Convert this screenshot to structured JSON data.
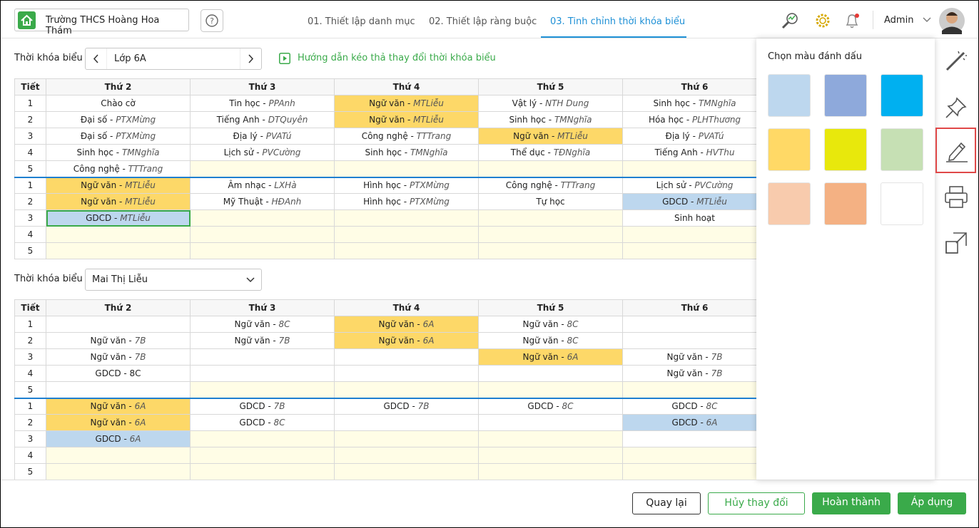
{
  "header": {
    "school": "Trường THCS Hoàng Hoa Thám",
    "tabs": [
      "01. Thiết lập danh mục",
      "02. Thiết lập ràng buộc",
      "03. Tinh chỉnh thời khóa biểu"
    ],
    "active_tab": 2,
    "user": "Admin"
  },
  "section1": {
    "label": "Thời khóa biểu",
    "class": "Lớp 6A",
    "guide": "Hướng dẫn kéo thả thay đổi thời khóa biểu"
  },
  "table1": {
    "headers": [
      "Tiết",
      "Thứ 2",
      "Thứ 3",
      "Thứ 4",
      "Thứ 5",
      "Thứ 6"
    ],
    "sessions": [
      {
        "rows": [
          {
            "period": "1",
            "cells": [
              {
                "s": "Chào cờ"
              },
              {
                "s": "Tin học - ",
                "t": "PPAnh"
              },
              {
                "s": "Ngữ văn - ",
                "t": "MTLiễu",
                "bg": "#fdd868"
              },
              {
                "s": "Vật lý - ",
                "t": "NTH Dung"
              },
              {
                "s": "Sinh học - ",
                "t": "TMNghĩa"
              }
            ]
          },
          {
            "period": "2",
            "cells": [
              {
                "s": "Đại số - ",
                "t": "PTXMừng"
              },
              {
                "s": "Tiếng Anh - ",
                "t": "DTQuyên"
              },
              {
                "s": "Ngữ văn - ",
                "t": "MTLiễu",
                "bg": "#fdd868"
              },
              {
                "s": "Sinh học - ",
                "t": "TMNghĩa"
              },
              {
                "s": "Hóa học - ",
                "t": "PLHThương"
              }
            ]
          },
          {
            "period": "3",
            "cells": [
              {
                "s": "Đại số - ",
                "t": "PTXMừng"
              },
              {
                "s": "Địa lý - ",
                "t": "PVATú"
              },
              {
                "s": "Công nghệ - ",
                "t": "TTTrang"
              },
              {
                "s": "Ngữ văn - ",
                "t": "MTLiễu",
                "bg": "#fdd868"
              },
              {
                "s": "Địa lý - ",
                "t": "PVATú"
              }
            ]
          },
          {
            "period": "4",
            "cells": [
              {
                "s": "Sinh học - ",
                "t": "TMNghĩa"
              },
              {
                "s": "Lịch sử - ",
                "t": "PVCường"
              },
              {
                "s": "Sinh học - ",
                "t": "TMNghĩa"
              },
              {
                "s": "Thể dục - ",
                "t": "TĐNghĩa"
              },
              {
                "s": "Tiếng Anh - ",
                "t": "HVThu"
              }
            ]
          },
          {
            "period": "5",
            "cells": [
              {
                "s": "Công nghệ - ",
                "t": "TTTrang"
              },
              {
                "bg": "#fffde6"
              },
              {
                "bg": "#fffde6"
              },
              {
                "bg": "#fffde6"
              },
              {
                "bg": "#fffde6"
              }
            ]
          }
        ]
      },
      {
        "rows": [
          {
            "period": "1",
            "cells": [
              {
                "s": "Ngữ văn - ",
                "t": "MTLiễu",
                "bg": "#fdd868"
              },
              {
                "s": "Âm nhạc - ",
                "t": "LXHà"
              },
              {
                "s": "Hình học - ",
                "t": "PTXMừng"
              },
              {
                "s": "Công nghệ - ",
                "t": "TTTrang"
              },
              {
                "s": "Lịch sử - ",
                "t": "PVCường"
              }
            ]
          },
          {
            "period": "2",
            "cells": [
              {
                "s": "Ngữ văn - ",
                "t": "MTLiễu",
                "bg": "#fdd868"
              },
              {
                "s": "Mỹ Thuật - ",
                "t": "HĐAnh"
              },
              {
                "s": "Hình học - ",
                "t": "PTXMừng"
              },
              {
                "s": "Tự học"
              },
              {
                "s": "GDCD - ",
                "t": "MTLiễu",
                "bg": "#bdd7ee"
              }
            ]
          },
          {
            "period": "3",
            "cells": [
              {
                "s": "GDCD - ",
                "t": "MTLiễu",
                "bg": "#bdd7ee",
                "selected": true
              },
              {
                "bg": "#fffde6"
              },
              {
                "bg": "#fffde6"
              },
              {
                "bg": "#fffde6"
              },
              {
                "s": "Sinh hoạt"
              }
            ]
          },
          {
            "period": "4",
            "cells": [
              {
                "bg": "#fffde6"
              },
              {
                "bg": "#fffde6"
              },
              {
                "bg": "#fffde6"
              },
              {
                "bg": "#fffde6"
              },
              {
                "bg": "#fffde6"
              }
            ]
          },
          {
            "period": "5",
            "cells": [
              {
                "bg": "#fffde6"
              },
              {
                "bg": "#fffde6"
              },
              {
                "bg": "#fffde6"
              },
              {
                "bg": "#fffde6"
              },
              {
                "bg": "#fffde6"
              }
            ]
          }
        ]
      }
    ]
  },
  "section2": {
    "label": "Thời khóa biểu",
    "teacher": "Mai Thị Liễu"
  },
  "table2": {
    "headers": [
      "Tiết",
      "Thứ 2",
      "Thứ 3",
      "Thứ 4",
      "Thứ 5",
      "Thứ 6"
    ],
    "sessions": [
      {
        "rows": [
          {
            "period": "1",
            "cells": [
              {},
              {
                "s": "Ngữ văn - ",
                "t": "8C"
              },
              {
                "s": "Ngữ văn - ",
                "t": "6A",
                "bg": "#fdd868"
              },
              {
                "s": "Ngữ văn - ",
                "t": "8C"
              },
              {}
            ]
          },
          {
            "period": "2",
            "cells": [
              {
                "s": "Ngữ văn - ",
                "t": "7B"
              },
              {
                "s": "Ngữ văn - ",
                "t": "7B"
              },
              {
                "s": "Ngữ văn - ",
                "t": "6A",
                "bg": "#fdd868"
              },
              {
                "s": "Ngữ văn - ",
                "t": "8C"
              },
              {}
            ]
          },
          {
            "period": "3",
            "cells": [
              {
                "s": "Ngữ văn - ",
                "t": "7B"
              },
              {},
              {},
              {
                "s": "Ngữ văn - ",
                "t": "6A",
                "bg": "#fdd868"
              },
              {
                "s": "Ngữ văn - ",
                "t": "7B"
              }
            ]
          },
          {
            "period": "4",
            "cells": [
              {
                "s": "GDCD - 8C"
              },
              {},
              {},
              {},
              {
                "s": "Ngữ văn - ",
                "t": "7B"
              }
            ]
          },
          {
            "period": "5",
            "cells": [
              {},
              {
                "bg": "#fffde6"
              },
              {
                "bg": "#fffde6"
              },
              {
                "bg": "#fffde6"
              },
              {
                "bg": "#fffde6"
              }
            ]
          }
        ]
      },
      {
        "rows": [
          {
            "period": "1",
            "cells": [
              {
                "s": "Ngữ văn - ",
                "t": "6A",
                "bg": "#fdd868"
              },
              {
                "s": "GDCD - ",
                "t": "7B"
              },
              {
                "s": "GDCD - ",
                "t": "7B"
              },
              {
                "s": "GDCD - ",
                "t": "8C"
              },
              {
                "s": "GDCD - ",
                "t": "8C"
              }
            ]
          },
          {
            "period": "2",
            "cells": [
              {
                "s": "Ngữ văn - ",
                "t": "6A",
                "bg": "#fdd868"
              },
              {
                "s": "GDCD - ",
                "t": "8C"
              },
              {},
              {},
              {
                "s": "GDCD - ",
                "t": "6A",
                "bg": "#bdd7ee"
              }
            ]
          },
          {
            "period": "3",
            "cells": [
              {
                "s": "GDCD - ",
                "t": "6A",
                "bg": "#bdd7ee"
              },
              {
                "bg": "#fffde6"
              },
              {
                "bg": "#fffde6"
              },
              {
                "bg": "#fffde6"
              },
              {}
            ]
          },
          {
            "period": "4",
            "cells": [
              {
                "bg": "#fffde6"
              },
              {
                "bg": "#fffde6"
              },
              {
                "bg": "#fffde6"
              },
              {
                "bg": "#fffde6"
              },
              {
                "bg": "#fffde6"
              }
            ]
          },
          {
            "period": "5",
            "cells": [
              {
                "bg": "#fffde6"
              },
              {
                "bg": "#fffde6"
              },
              {
                "bg": "#fffde6"
              },
              {
                "bg": "#fffde6"
              },
              {
                "bg": "#fffde6"
              }
            ]
          }
        ]
      }
    ]
  },
  "color_panel": {
    "title": "Chọn màu đánh dấu",
    "colors": [
      "#bdd7ee",
      "#8ea9db",
      "#00b0f0",
      "#ffd966",
      "#e8e80c",
      "#c6e0b4",
      "#f8cbad",
      "#f4b183",
      "#ffffff"
    ]
  },
  "footer": {
    "buttons": [
      "Quay lại",
      "Hủy thay đổi",
      "Hoàn thành",
      "Áp dụng"
    ]
  }
}
